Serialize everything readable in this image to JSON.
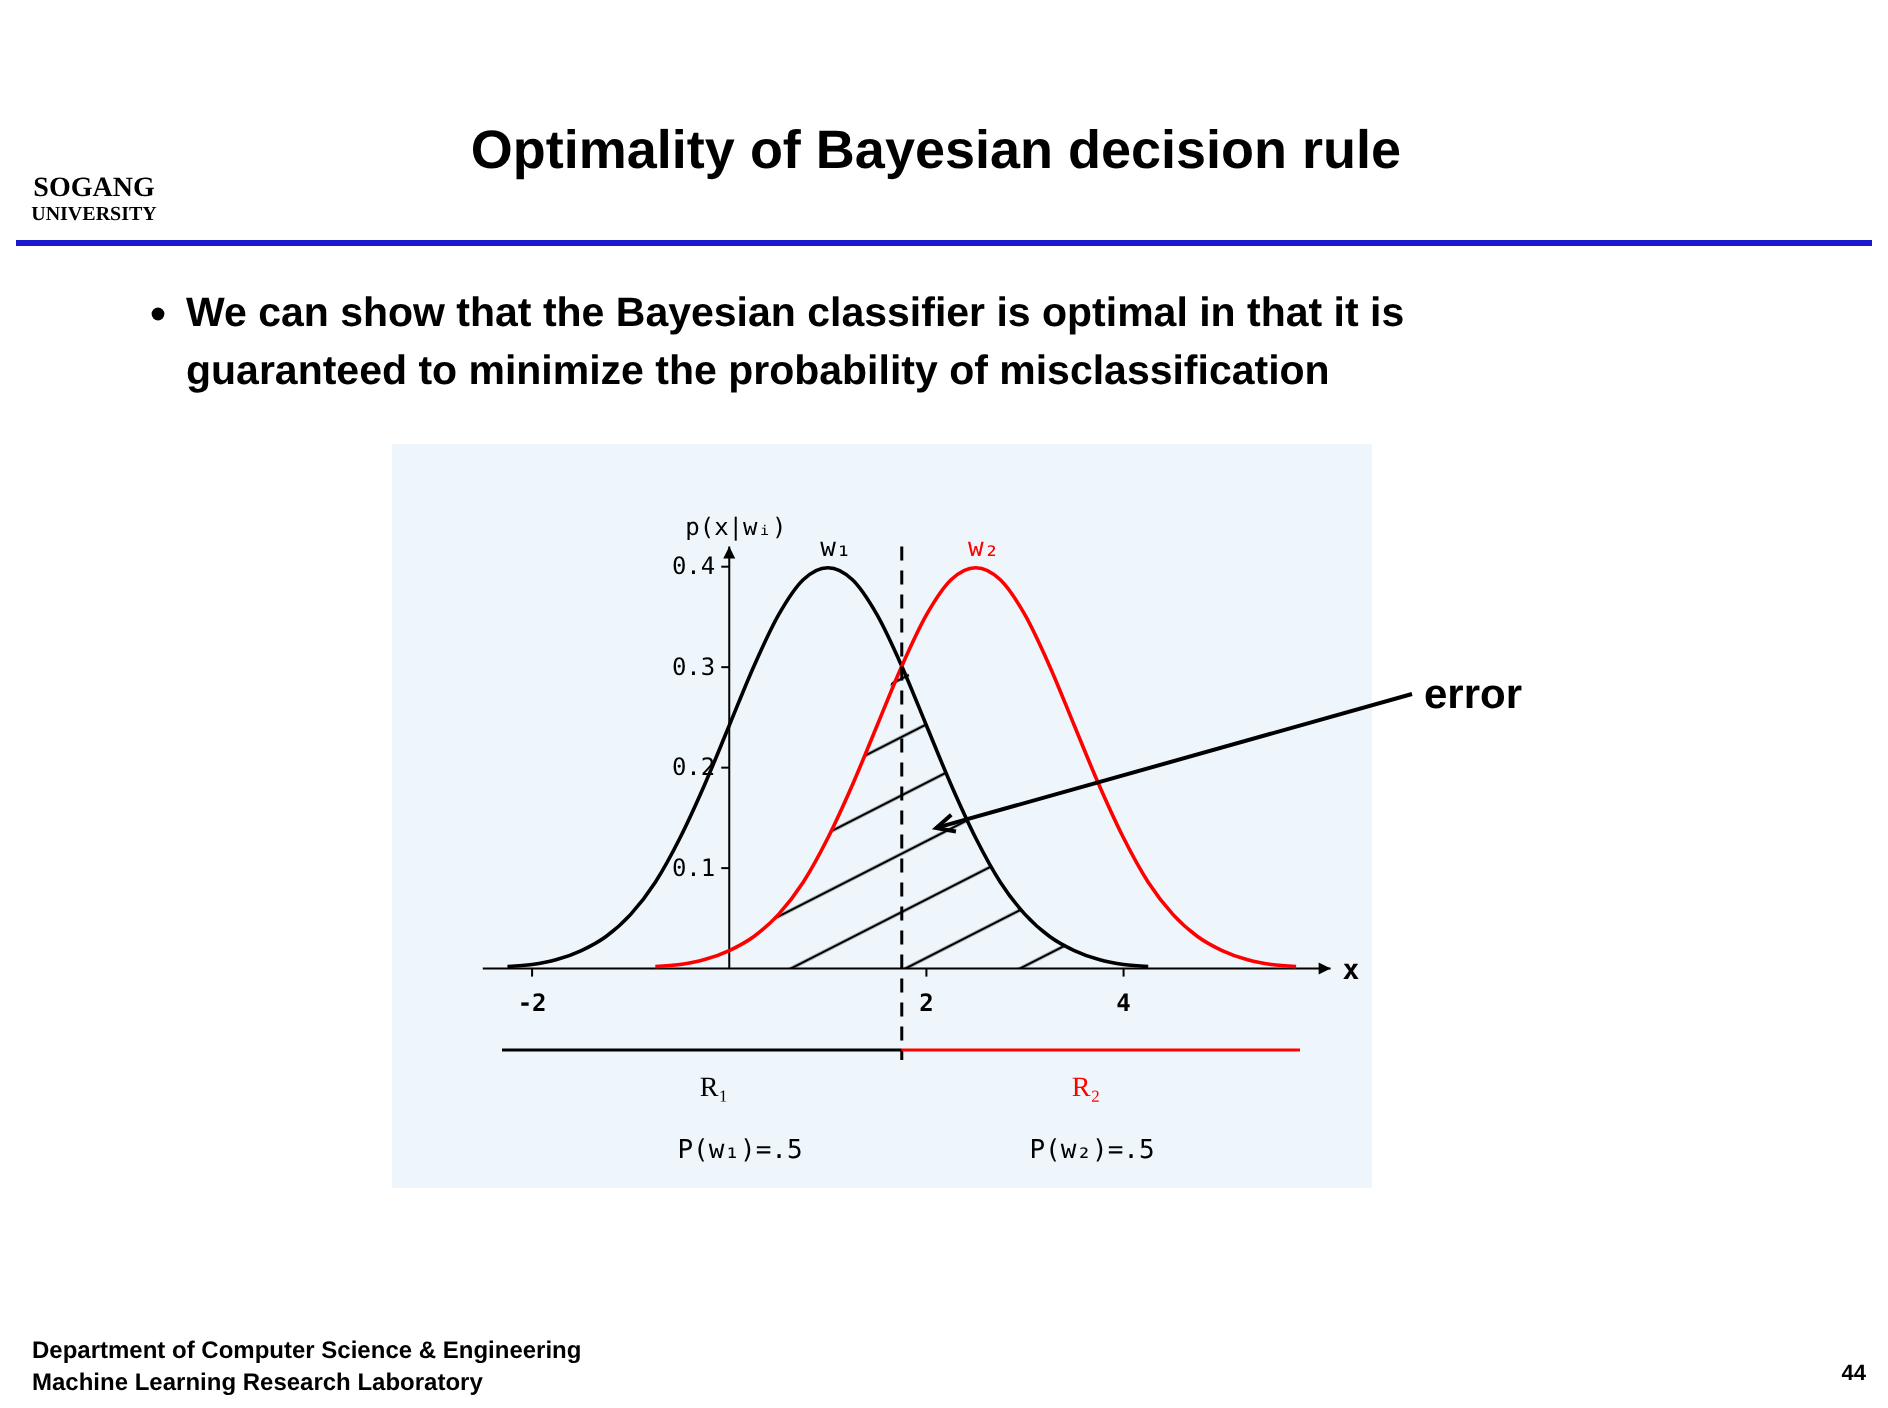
{
  "chart_data": {
    "type": "line",
    "title": "Optimality of Bayesian decision rule",
    "subtitle": "We can show that the Bayesian classifier is optimal in that it is guaranteed to minimize the probability of misclassification",
    "xlabel": "x",
    "ylabel": "p(x|wᵢ)",
    "series": [
      {
        "name": "w₁",
        "color": "#000000",
        "x": [
          -2.25,
          -2,
          -1.75,
          -1.5,
          -1.25,
          -1,
          -0.75,
          -0.5,
          -0.25,
          0,
          0.25,
          0.5,
          0.75,
          1,
          1.25,
          1.5,
          1.75,
          2,
          2.25,
          2.5,
          2.75,
          3,
          3.25,
          3.5,
          3.75,
          4,
          4.25
        ],
        "values": [
          0.002,
          0.004,
          0.009,
          0.018,
          0.032,
          0.054,
          0.086,
          0.13,
          0.183,
          0.242,
          0.301,
          0.352,
          0.387,
          0.399,
          0.387,
          0.352,
          0.301,
          0.242,
          0.183,
          0.13,
          0.086,
          0.054,
          0.032,
          0.018,
          0.009,
          0.004,
          0.002
        ]
      },
      {
        "name": "w₂",
        "color": "#ff0000",
        "x": [
          -0.75,
          -0.5,
          -0.25,
          0,
          0.25,
          0.5,
          0.75,
          1,
          1.25,
          1.5,
          1.75,
          2,
          2.25,
          2.5,
          2.75,
          3,
          3.25,
          3.5,
          3.75,
          4,
          4.25,
          4.5,
          4.75,
          5,
          5.25,
          5.5,
          5.75
        ],
        "values": [
          0.002,
          0.004,
          0.009,
          0.018,
          0.032,
          0.054,
          0.086,
          0.13,
          0.183,
          0.242,
          0.301,
          0.352,
          0.387,
          0.399,
          0.387,
          0.352,
          0.301,
          0.242,
          0.183,
          0.13,
          0.086,
          0.054,
          0.032,
          0.018,
          0.009,
          0.004,
          0.002
        ]
      },
      {
        "type": "area",
        "color": "#000000",
        "x": [
          0,
          0.25,
          0.5,
          0.75,
          1,
          1.25,
          1.5,
          1.75,
          2,
          2.25,
          2.5,
          2.75,
          3,
          3.25,
          3.5
        ],
        "values": [
          0.018,
          0.032,
          0.054,
          0.086,
          0.13,
          0.183,
          0.242,
          0.301,
          0.242,
          0.183,
          0.13,
          0.086,
          0.054,
          0.032,
          0.018
        ]
      }
    ],
    "xlim": [
      -2.5,
      6.1
    ],
    "xticks": [
      -2,
      2,
      4
    ],
    "ylim": [
      0,
      0.42
    ],
    "yticks": [
      0.1,
      0.2,
      0.3,
      0.4
    ],
    "grid": false,
    "ref_lines": [
      {
        "axis": "x",
        "value": 1.75,
        "line_style": "dashed",
        "color": "#000000"
      }
    ],
    "annotations": [
      "R₁",
      "R₂",
      "SOGANG",
      "UNIVERSITY",
      "error",
      "P(w₁)=.5",
      "P(w₂)=.5",
      "Department of Computer Science & Engineering",
      "Machine Learning Research Laboratory",
      "44"
    ]
  }
}
